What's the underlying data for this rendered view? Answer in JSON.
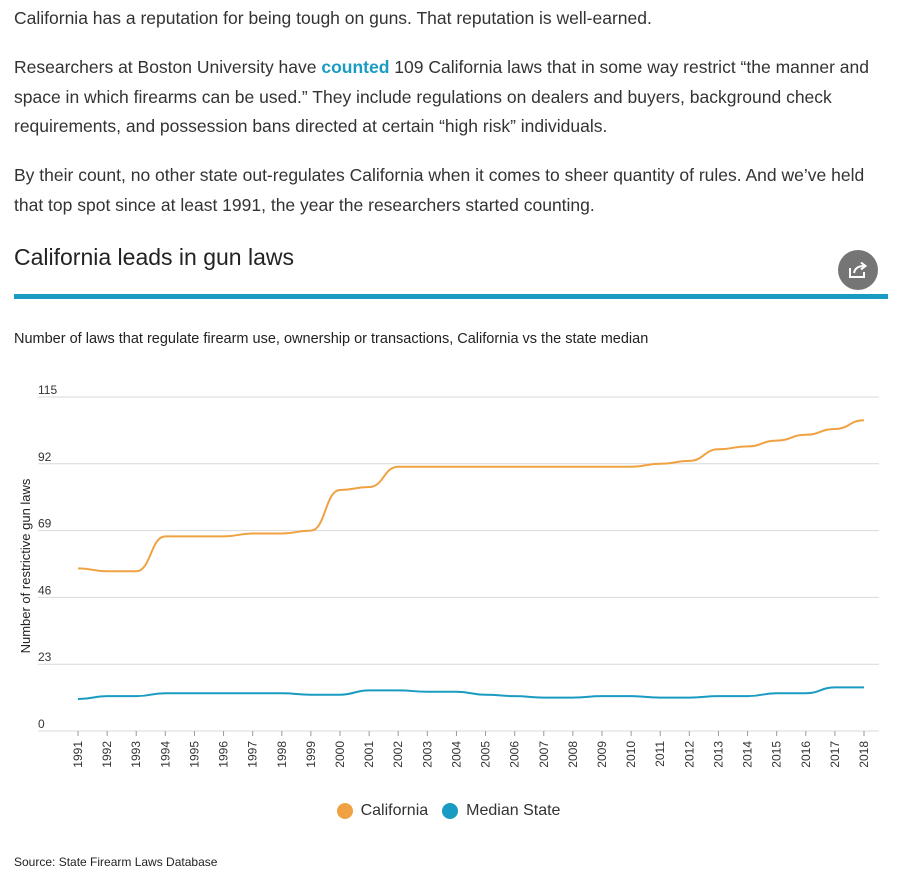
{
  "article": {
    "p1": "California has a reputation for being tough on guns. That reputation is well-earned.",
    "p2_before": "Researchers at Boston University have ",
    "p2_link": "counted",
    "p2_after": " 109 California laws that in some way restrict “the manner and space in which firearms can be used.” They include regulations on dealers and buyers, background check requirements, and possession bans directed at certain “high risk” individuals.",
    "p3": "By their count, no other state out-regulates California when it comes to sheer quantity of rules. And we’ve held that top spot since at least 1991, the year the researchers started counting."
  },
  "share_icon": "share-icon",
  "chart_data": {
    "type": "line",
    "title": "California leads in gun laws",
    "subtitle": "Number of laws that regulate firearm use, ownership or transactions, California vs the state median",
    "ylabel": "Number of restrictive gun laws",
    "xlabel": "",
    "ylim": [
      0,
      115
    ],
    "yticks": [
      0,
      23,
      46,
      69,
      92,
      115
    ],
    "grid": true,
    "legend_position": "bottom",
    "categories": [
      "1991",
      "1992",
      "1993",
      "1994",
      "1995",
      "1996",
      "1997",
      "1998",
      "1999",
      "2000",
      "2001",
      "2002",
      "2003",
      "2004",
      "2005",
      "2006",
      "2007",
      "2008",
      "2009",
      "2010",
      "2011",
      "2012",
      "2013",
      "2014",
      "2015",
      "2016",
      "2017",
      "2018"
    ],
    "series": [
      {
        "name": "California",
        "color": "#f0a242",
        "values": [
          56,
          55,
          55,
          67,
          67,
          67,
          68,
          68,
          69,
          83,
          84,
          91,
          91,
          91,
          91,
          91,
          91,
          91,
          91,
          91,
          92,
          93,
          97,
          98,
          100,
          102,
          104,
          107
        ]
      },
      {
        "name": "Median State",
        "color": "#1a9bc2",
        "values": [
          11,
          12,
          12,
          13,
          13,
          13,
          13,
          13,
          12.5,
          12.5,
          14,
          14,
          13.5,
          13.5,
          12.5,
          12,
          11.5,
          11.5,
          12,
          12,
          11.5,
          11.5,
          12,
          12,
          13,
          13,
          15,
          15
        ]
      }
    ],
    "source": "Source: State Firearm Laws Database"
  }
}
